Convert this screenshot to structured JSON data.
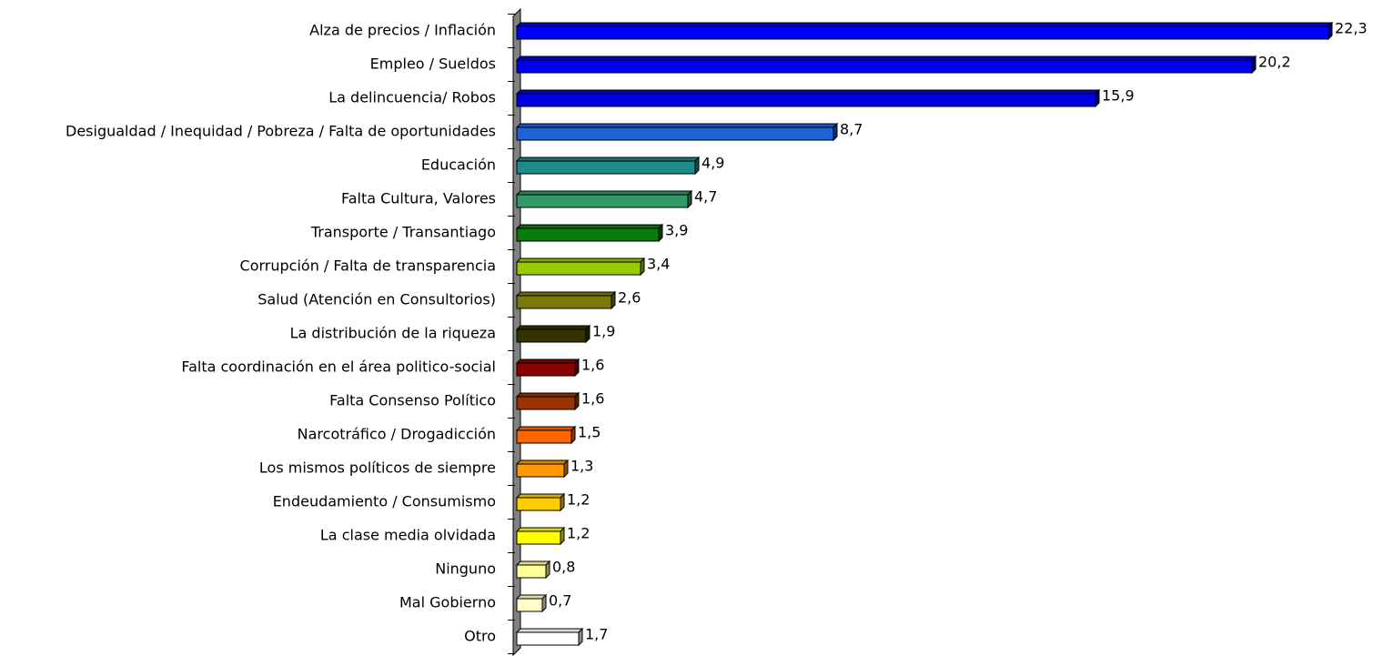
{
  "chart_data": {
    "type": "bar",
    "orientation": "horizontal",
    "categories": [
      "Alza de precios / Inflación",
      "Empleo / Sueldos",
      "La delincuencia/ Robos",
      "Desigualdad / Inequidad / Pobreza / Falta de oportunidades",
      "Educación",
      "Falta Cultura, Valores",
      "Transporte / Transantiago",
      "Corrupción / Falta de transparencia",
      "Salud (Atención en Consultorios)",
      "La distribución de la riqueza",
      "Falta coordinación en el área politico-social",
      "Falta Consenso Político",
      "Narcotráfico / Drogadicción",
      "Los mismos políticos de siempre",
      "Endeudamiento / Consumismo",
      "La clase media olvidada",
      "Ninguno",
      "Mal Gobierno",
      "Otro"
    ],
    "values": [
      22.3,
      20.2,
      15.9,
      8.7,
      4.9,
      4.7,
      3.9,
      3.4,
      2.6,
      1.9,
      1.6,
      1.6,
      1.5,
      1.3,
      1.2,
      1.2,
      0.8,
      0.7,
      1.7
    ],
    "value_labels": [
      "22,3",
      "20,2",
      "15,9",
      "8,7",
      "4,9",
      "4,7",
      "3,9",
      "3,4",
      "2,6",
      "1,9",
      "1,6",
      "1,6",
      "1,5",
      "1,3",
      "1,2",
      "1,2",
      "0,8",
      "0,7",
      "1,7"
    ],
    "colors": [
      "#0000ff",
      "#0000f0",
      "#0000e0",
      "#1f63d6",
      "#1f8b8b",
      "#339966",
      "#0a7a0a",
      "#99cc00",
      "#7a7a0a",
      "#333300",
      "#8b0000",
      "#993300",
      "#ff6600",
      "#ff9900",
      "#ffcc00",
      "#ffff00",
      "#ffff99",
      "#ffffcc",
      "#ffffff"
    ]
  }
}
